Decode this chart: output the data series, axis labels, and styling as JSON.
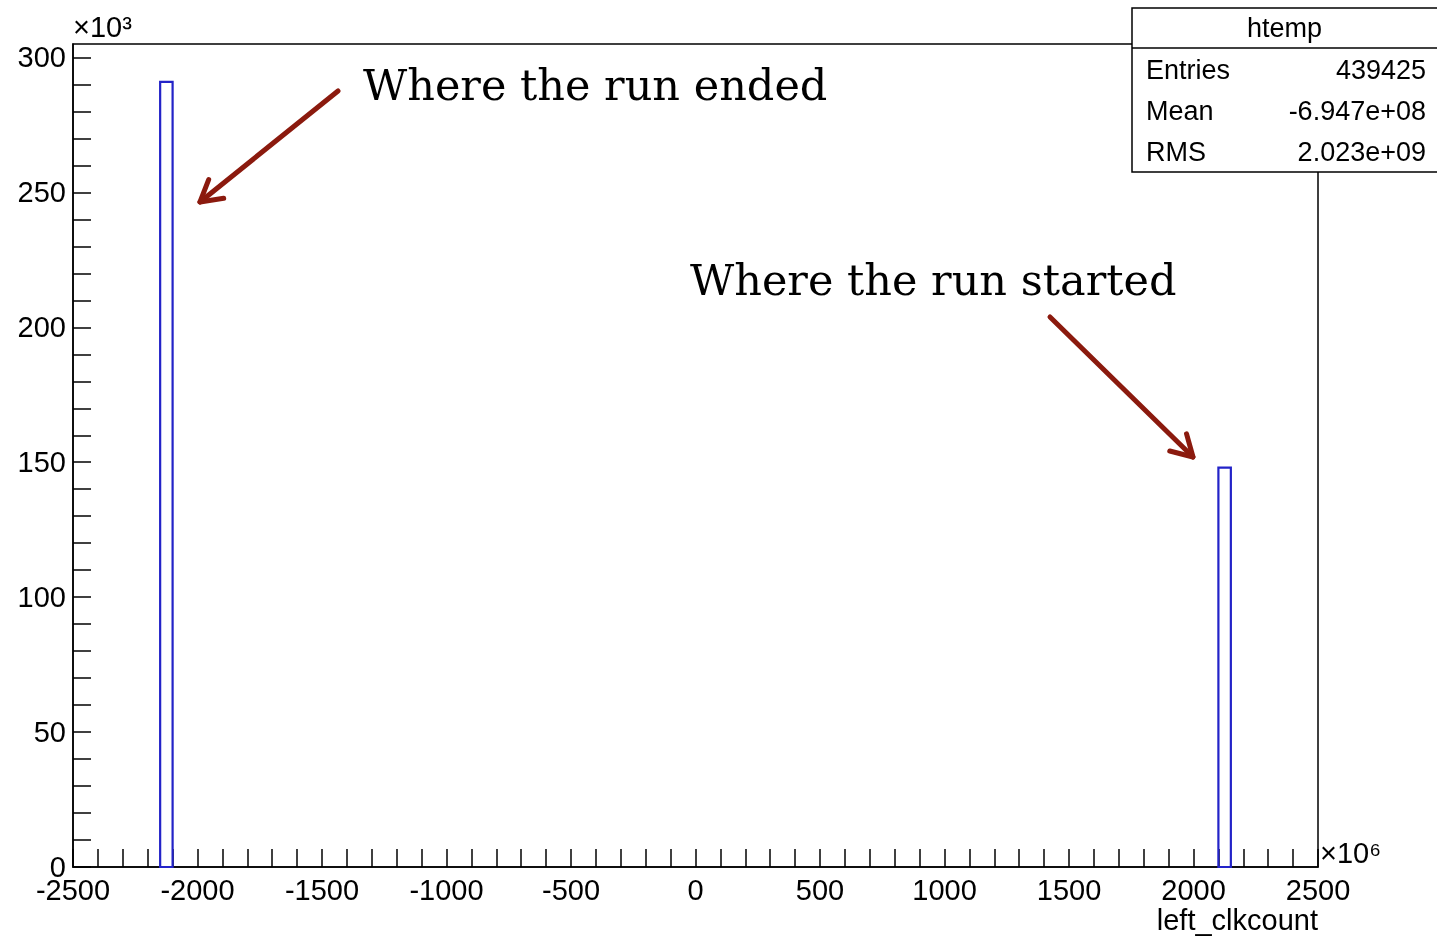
{
  "chart_data": {
    "type": "histogram",
    "bins": [
      -2150,
      -2100,
      2100,
      2150
    ],
    "values": [
      291,
      0,
      148
    ],
    "color": "#2323c8",
    "xlabel": "left_clkcount",
    "ylabel": "×10³",
    "xlim": [
      -2500,
      2500
    ],
    "xticks": [
      -2500,
      -2000,
      -1500,
      -1000,
      -500,
      0,
      500,
      1000,
      1500,
      2000,
      2500
    ],
    "ylim": [
      0,
      305
    ],
    "yticks": [
      0,
      50,
      100,
      150,
      200,
      250,
      300
    ],
    "annotations": [
      "Where the run ended",
      "Where the run started",
      "×10⁶",
      "htemp",
      "Entries 439425",
      "Mean -6.947e+08",
      "RMS 2.023e+09"
    ]
  }
}
